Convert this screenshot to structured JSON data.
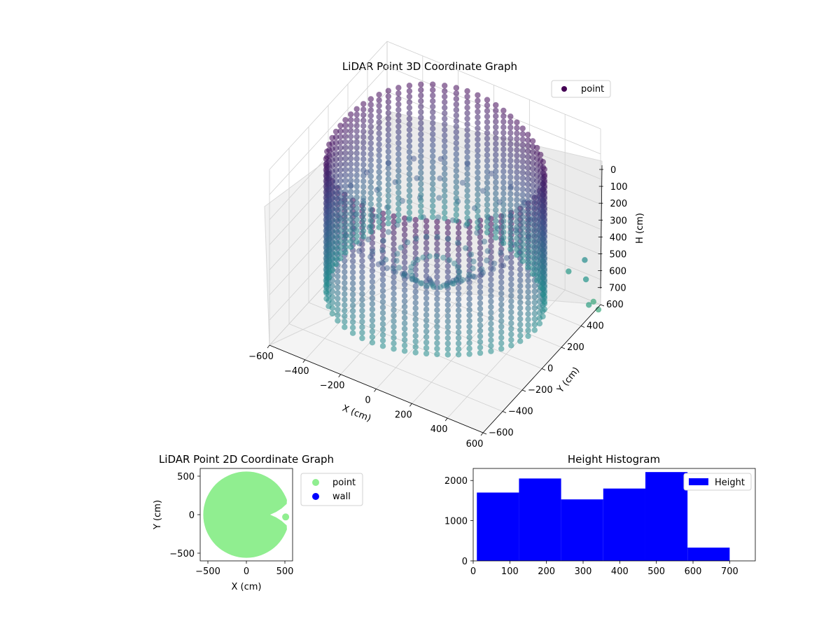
{
  "chart_data": [
    {
      "type": "scatter3d",
      "title": "LiDAR Point 3D Coordinate Graph",
      "xlabel": "X (cm)",
      "ylabel": "Y (cm)",
      "zlabel": "H (cm)",
      "xlim": [
        -600,
        600
      ],
      "ylim": [
        -600,
        600
      ],
      "zlim": [
        0,
        700
      ],
      "z_inverted": true,
      "xticks": [
        "−600",
        "−400",
        "−200",
        "0",
        "200",
        "400",
        "600"
      ],
      "yticks": [
        "−600",
        "−400",
        "−200",
        "0",
        "200",
        "400",
        "600"
      ],
      "zticks": [
        "0",
        "100",
        "200",
        "300",
        "400",
        "500",
        "600",
        "700"
      ],
      "legend": {
        "position": "top-right",
        "entries": [
          "point"
        ]
      },
      "colormap": [
        "#440154",
        "#3b528b",
        "#21918c",
        "#5ec962",
        "#b5de2b"
      ],
      "series": [
        {
          "name": "point",
          "color": "#440154",
          "wall_radius_cm": 560,
          "height_range_cm": [
            0,
            700
          ],
          "scanline_count": 60
        }
      ],
      "grid": true
    },
    {
      "type": "scatter",
      "title": "LiDAR Point 2D Coordinate Graph",
      "xlabel": "X (cm)",
      "ylabel": "Y (cm)",
      "xlim": [
        -600,
        600
      ],
      "ylim": [
        -600,
        600
      ],
      "xticks": [
        "−500",
        "0",
        "500"
      ],
      "yticks": [
        "−500",
        "0",
        "500"
      ],
      "legend": {
        "position": "outside-right",
        "entries": [
          "point",
          "wall"
        ]
      },
      "series": [
        {
          "name": "point",
          "color": "#90ee90",
          "shape": "disc",
          "radius_cm": 560
        },
        {
          "name": "wall",
          "color": "#0000ff",
          "count": 0
        }
      ]
    },
    {
      "type": "bar",
      "title": "Height Histogram",
      "xlabel": "",
      "ylabel": "",
      "xlim": [
        0,
        770
      ],
      "ylim": [
        0,
        2300
      ],
      "xticks": [
        "0",
        "100",
        "200",
        "300",
        "400",
        "500",
        "600",
        "700"
      ],
      "yticks": [
        "0",
        "1000",
        "2000"
      ],
      "legend": {
        "position": "top-right",
        "entries": [
          "Height"
        ]
      },
      "bins": [
        {
          "start": 10,
          "end": 125,
          "count": 1700
        },
        {
          "start": 125,
          "end": 240,
          "count": 2050
        },
        {
          "start": 240,
          "end": 355,
          "count": 1530
        },
        {
          "start": 355,
          "end": 470,
          "count": 1800
        },
        {
          "start": 470,
          "end": 585,
          "count": 2210
        },
        {
          "start": 585,
          "end": 700,
          "count": 330
        }
      ],
      "series": [
        {
          "name": "Height",
          "color": "#0000ff"
        }
      ]
    }
  ]
}
